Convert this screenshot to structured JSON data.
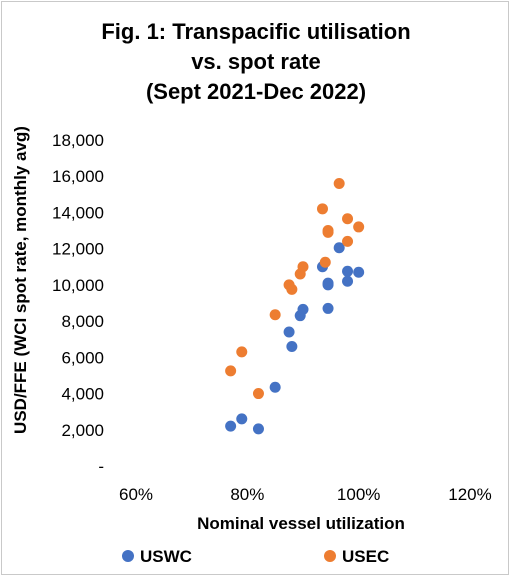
{
  "chart_data": {
    "type": "scatter",
    "title": [
      "Fig. 1: Transpacific utilisation",
      "vs. spot rate",
      "(Sept 2021-Dec 2022)"
    ],
    "xlabel": "Nominal vessel utilization",
    "ylabel": "USD/FFE (WCI spot rate, monthly avg)",
    "xlim": [
      0.6,
      1.2
    ],
    "ylim": [
      0,
      18000
    ],
    "x_ticks": [
      0.6,
      0.8,
      1.0,
      1.2
    ],
    "x_tick_labels": [
      "60%",
      "80%",
      "100%",
      "120%"
    ],
    "y_ticks": [
      0,
      2000,
      4000,
      6000,
      8000,
      10000,
      12000,
      14000,
      16000,
      18000
    ],
    "y_tick_labels": [
      "-",
      "2,000",
      "4,000",
      "6,000",
      "8,000",
      "10,000",
      "12,000",
      "14,000",
      "16,000",
      "18,000"
    ],
    "grid": false,
    "legend_position": "bottom",
    "series": [
      {
        "name": "USWC",
        "color": "#4472C4",
        "points": [
          {
            "x": 0.77,
            "y": 2200
          },
          {
            "x": 0.79,
            "y": 2600
          },
          {
            "x": 0.82,
            "y": 2050
          },
          {
            "x": 0.85,
            "y": 4350
          },
          {
            "x": 0.875,
            "y": 7400
          },
          {
            "x": 0.88,
            "y": 6600
          },
          {
            "x": 0.895,
            "y": 8300
          },
          {
            "x": 0.9,
            "y": 8650
          },
          {
            "x": 0.935,
            "y": 11000
          },
          {
            "x": 0.945,
            "y": 10000
          },
          {
            "x": 0.945,
            "y": 8700
          },
          {
            "x": 0.945,
            "y": 10100
          },
          {
            "x": 0.965,
            "y": 12050
          },
          {
            "x": 0.98,
            "y": 10750
          },
          {
            "x": 0.98,
            "y": 10200
          },
          {
            "x": 1.0,
            "y": 10700
          }
        ]
      },
      {
        "name": "USEC",
        "color": "#ED7D31",
        "points": [
          {
            "x": 0.77,
            "y": 5250
          },
          {
            "x": 0.79,
            "y": 6300
          },
          {
            "x": 0.82,
            "y": 4000
          },
          {
            "x": 0.85,
            "y": 8350
          },
          {
            "x": 0.875,
            "y": 10000
          },
          {
            "x": 0.88,
            "y": 9750
          },
          {
            "x": 0.895,
            "y": 10600
          },
          {
            "x": 0.9,
            "y": 11000
          },
          {
            "x": 0.935,
            "y": 14200
          },
          {
            "x": 0.94,
            "y": 11250
          },
          {
            "x": 0.945,
            "y": 13000
          },
          {
            "x": 0.945,
            "y": 12900
          },
          {
            "x": 0.965,
            "y": 15600
          },
          {
            "x": 0.98,
            "y": 13650
          },
          {
            "x": 0.98,
            "y": 12400
          },
          {
            "x": 1.0,
            "y": 13200
          }
        ]
      }
    ]
  }
}
